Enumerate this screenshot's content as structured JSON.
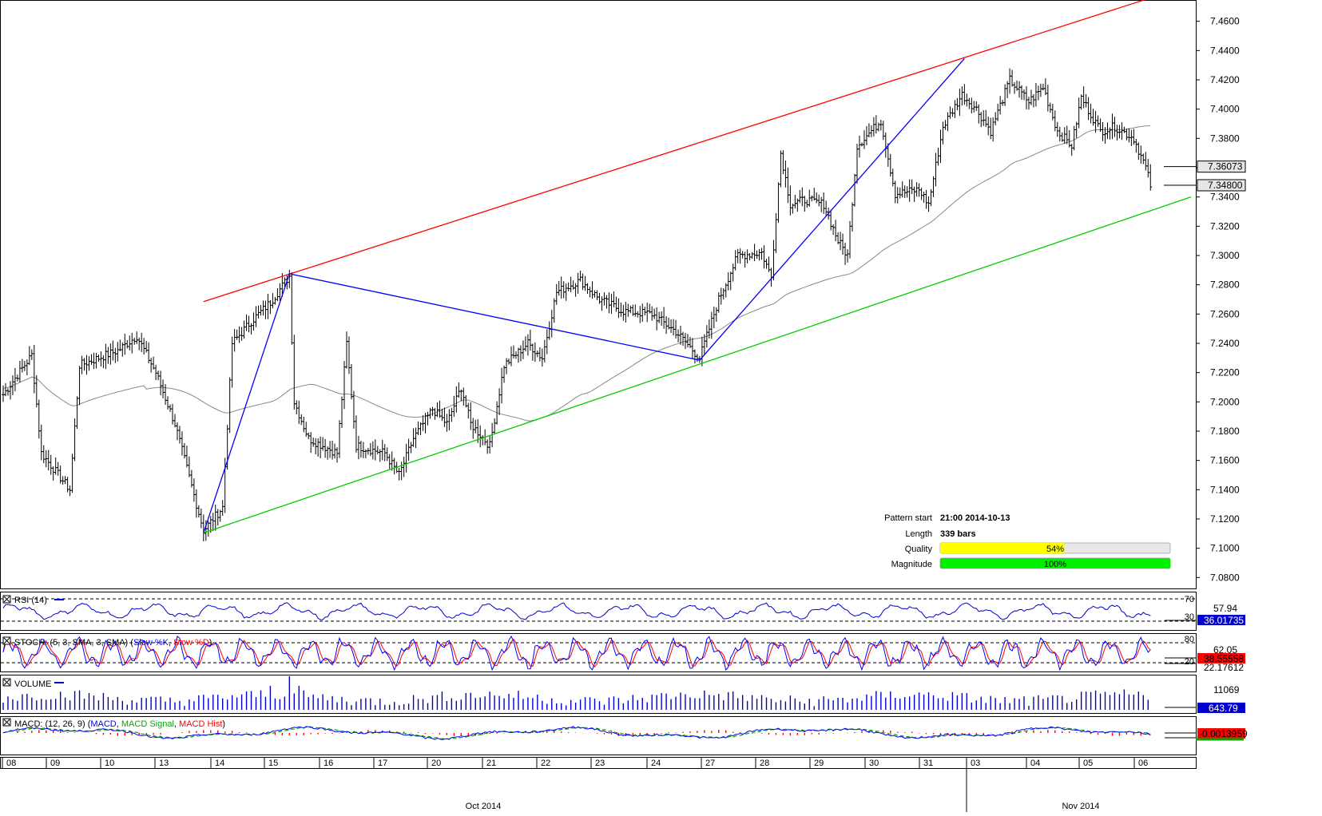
{
  "chart_data": {
    "type": "candlestick",
    "y_ticks": [
      "7.4600",
      "7.4400",
      "7.4200",
      "7.4000",
      "7.3800",
      "7.3600",
      "7.3400",
      "7.3200",
      "7.3000",
      "7.2800",
      "7.2600",
      "7.2400",
      "7.2200",
      "7.2000",
      "7.1800",
      "7.1600",
      "7.1400",
      "7.1200",
      "7.1000",
      "7.0800"
    ],
    "ylim": [
      7.072,
      7.474
    ],
    "price_flags": [
      {
        "value": "7.36073",
        "y": 7.36073
      },
      {
        "value": "7.34800",
        "y": 7.348
      }
    ],
    "date_ticks": [
      "08",
      "09",
      "10",
      "13",
      "14",
      "15",
      "16",
      "17",
      "20",
      "21",
      "22",
      "23",
      "24",
      "27",
      "28",
      "29",
      "30",
      "31",
      "03",
      "04",
      "05",
      "06"
    ],
    "month_labels": [
      "Oct 2014",
      "Nov 2014"
    ],
    "pattern_lines": {
      "resistance": {
        "color": "#ff0000",
        "from_index": 84,
        "from_value": 7.2685,
        "to_index": 482,
        "to_value": 7.4765
      },
      "support": {
        "color": "#00cc00",
        "from_index": 84,
        "from_value": 7.1105,
        "to_index": 498,
        "to_value": 7.34
      },
      "zigzag": {
        "color": "#0000ff",
        "points": [
          [
            84,
            7.1105
          ],
          [
            120,
            7.2875
          ],
          [
            292,
            7.2285
          ],
          [
            403,
            7.4345
          ]
        ]
      }
    },
    "info_panel": {
      "pattern_start_label": "Pattern start",
      "pattern_start_value": "21:00 2014-10-13",
      "length_label": "Length",
      "length_value": "339 bars",
      "quality_label": "Quality",
      "quality_value": "54%",
      "quality_fraction": 0.54,
      "magnitude_label": "Magnitude",
      "magnitude_value": "100%",
      "magnitude_fraction": 1.0
    },
    "indicators": {
      "rsi": {
        "label": "RSI (14)",
        "levels": [
          "70",
          "30"
        ],
        "top_value": "57.94",
        "current": "36.01735"
      },
      "stoch": {
        "label_prefix": "STOCH: (5, 3, SMA, 3, SMA)",
        "k_name": "Slow %K",
        "d_name": "Slow %D",
        "levels": [
          "80",
          "20"
        ],
        "top_value": "62.05",
        "current": "38.55558",
        "d_current": "22.17612"
      },
      "volume": {
        "label": "VOLUME",
        "top_value": "11069",
        "current": "643.79"
      },
      "macd": {
        "label_prefix": "MACD: (12, 26, 9)",
        "macd_name": "MACD",
        "signal_name": "MACD Signal",
        "hist_name": "MACD Hist",
        "current": "-0.0013959"
      }
    },
    "colors": {
      "resistance": "#ff0000",
      "support": "#00cc00",
      "zigzag": "#0000ff",
      "sma": "#888888",
      "quality_bar": "#ffff00",
      "magnitude_bar": "#00ee00",
      "rsi_line": "#0000cc",
      "stoch_k": "#0000ff",
      "stoch_d": "#ff0000",
      "volume": "#0000cc",
      "macd_line": "#0000ff",
      "macd_signal": "#00aa00",
      "macd_hist": "#ff0000",
      "current_flag": "#ff0000"
    }
  }
}
